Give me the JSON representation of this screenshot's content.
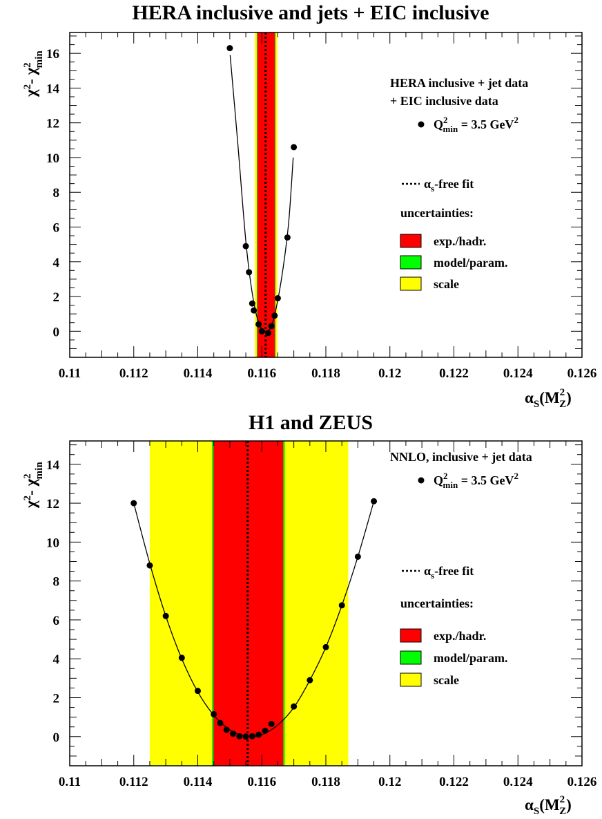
{
  "chart_data": [
    {
      "type": "scatter",
      "title": "HERA inclusive and jets + EIC inclusive",
      "xlabel": "αS(M2Z)",
      "ylabel": "χ2 - χ2min",
      "xlim": [
        0.11,
        0.126
      ],
      "ylim": [
        -1.5,
        17.2
      ],
      "xticks": [
        "0.11",
        "0.112",
        "0.114",
        "0.116",
        "0.118",
        "0.12",
        "0.122",
        "0.124",
        "0.126"
      ],
      "yticks": [
        "0",
        "2",
        "4",
        "6",
        "8",
        "10",
        "12",
        "14",
        "16"
      ],
      "legend": {
        "header": [
          "HERA inclusive + jet data",
          "+ EIC inclusive data"
        ],
        "points_label": "Q2min = 3.5 GeV2",
        "line_label": "αs-free fit",
        "uncertainties_label": "uncertainties:",
        "bands": [
          "exp./hadr.",
          "model/param.",
          "scale"
        ]
      },
      "bands": {
        "scale": [
          0.11578,
          0.11648
        ],
        "model": [
          0.11584,
          0.11643
        ],
        "exp": [
          0.11586,
          0.11641
        ]
      },
      "central": 0.11612,
      "points": [
        [
          0.115,
          16.3
        ],
        [
          0.1155,
          4.9
        ],
        [
          0.1156,
          3.4
        ],
        [
          0.1157,
          1.6
        ],
        [
          0.11575,
          1.2
        ],
        [
          0.1159,
          0.4
        ],
        [
          0.116,
          0.0
        ],
        [
          0.1162,
          -0.1
        ],
        [
          0.1163,
          0.3
        ],
        [
          0.1164,
          0.9
        ],
        [
          0.1165,
          1.9
        ],
        [
          0.1168,
          5.4
        ],
        [
          0.117,
          10.6
        ]
      ],
      "curve": [
        [
          0.11501,
          15.9
        ],
        [
          0.11525,
          10.8
        ],
        [
          0.1155,
          5.2
        ],
        [
          0.1157,
          2.2
        ],
        [
          0.1159,
          0.5
        ],
        [
          0.1161,
          0.0
        ],
        [
          0.1163,
          0.3
        ],
        [
          0.1165,
          1.8
        ],
        [
          0.1167,
          4.1
        ],
        [
          0.11685,
          6.5
        ],
        [
          0.11698,
          10.0
        ]
      ]
    },
    {
      "type": "scatter",
      "title": "H1 and ZEUS",
      "xlabel": "αS(M2Z)",
      "ylabel": "χ2 - χ2min",
      "xlim": [
        0.11,
        0.126
      ],
      "ylim": [
        -1.5,
        15.2
      ],
      "xticks": [
        "0.11",
        "0.112",
        "0.114",
        "0.116",
        "0.118",
        "0.12",
        "0.122",
        "0.124",
        "0.126"
      ],
      "yticks": [
        "0",
        "2",
        "4",
        "6",
        "8",
        "10",
        "12",
        "14"
      ],
      "legend": {
        "header": [
          "NNLO, inclusive + jet data"
        ],
        "points_label": "Q2min = 3.5 GeV2",
        "line_label": "αs-free fit",
        "uncertainties_label": "uncertainties:",
        "bands": [
          "exp./hadr.",
          "model/param.",
          "scale"
        ]
      },
      "bands": {
        "scale": [
          0.1125,
          0.1187
        ],
        "model": [
          0.11444,
          0.11672
        ],
        "exp": [
          0.11449,
          0.11667
        ]
      },
      "central": 0.11556,
      "points": [
        [
          0.112,
          12.0
        ],
        [
          0.1125,
          8.8
        ],
        [
          0.113,
          6.2
        ],
        [
          0.1135,
          4.05
        ],
        [
          0.114,
          2.35
        ],
        [
          0.1145,
          1.15
        ],
        [
          0.1147,
          0.7
        ],
        [
          0.1149,
          0.35
        ],
        [
          0.1151,
          0.15
        ],
        [
          0.1153,
          0.02
        ],
        [
          0.1155,
          0.0
        ],
        [
          0.1157,
          0.02
        ],
        [
          0.1159,
          0.1
        ],
        [
          0.1161,
          0.3
        ],
        [
          0.1163,
          0.65
        ],
        [
          0.117,
          1.55
        ],
        [
          0.1175,
          2.9
        ],
        [
          0.118,
          4.6
        ],
        [
          0.1185,
          6.75
        ],
        [
          0.119,
          9.25
        ],
        [
          0.1195,
          12.1
        ]
      ],
      "curve": [
        [
          0.112,
          12.0
        ],
        [
          0.1125,
          8.9
        ],
        [
          0.113,
          6.2
        ],
        [
          0.1135,
          4.0
        ],
        [
          0.114,
          2.3
        ],
        [
          0.1145,
          1.1
        ],
        [
          0.115,
          0.35
        ],
        [
          0.1155,
          0.02
        ],
        [
          0.116,
          0.1
        ],
        [
          0.1165,
          0.6
        ],
        [
          0.117,
          1.5
        ],
        [
          0.1175,
          2.9
        ],
        [
          0.118,
          4.6
        ],
        [
          0.1185,
          6.75
        ],
        [
          0.119,
          9.25
        ],
        [
          0.1195,
          12.1
        ]
      ]
    }
  ],
  "colors": {
    "exp": "#ff0000",
    "model": "#00ff00",
    "scale": "#ffff00",
    "marker": "#000000"
  }
}
